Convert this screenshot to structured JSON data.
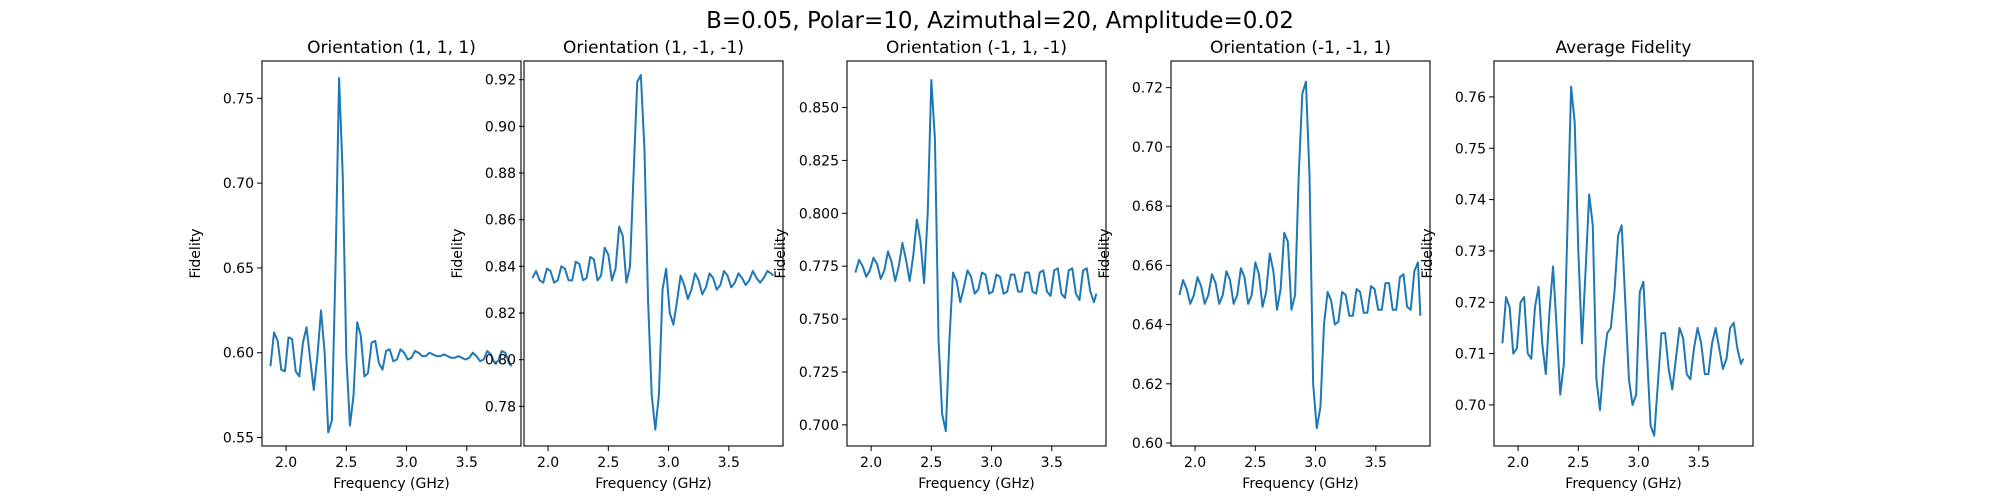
{
  "figure": {
    "suptitle": "B=0.05, Polar=10, Azimuthal=20, Amplitude=0.02"
  },
  "style": {
    "line_color": "#1f77b4",
    "axis_color": "#000000"
  },
  "chart_data": [
    {
      "type": "line",
      "title": "Orientation (1, 1, 1)",
      "xlabel": "Frequency (GHz)",
      "ylabel": "Fidelity",
      "xlim": [
        1.8,
        3.95
      ],
      "ylim": [
        0.545,
        0.772
      ],
      "xticks": [
        2.0,
        2.5,
        3.0,
        3.5
      ],
      "xtick_labels": [
        "2.0",
        "2.5",
        "3.0",
        "3.5"
      ],
      "yticks": [
        0.55,
        0.6,
        0.65,
        0.7,
        0.75
      ],
      "ytick_labels": [
        "0.55",
        "0.60",
        "0.65",
        "0.70",
        "0.75"
      ],
      "series": [
        {
          "x": [
            1.87,
            1.9,
            1.93,
            1.96,
            1.99,
            2.02,
            2.05,
            2.08,
            2.11,
            2.14,
            2.17,
            2.2,
            2.23,
            2.26,
            2.29,
            2.32,
            2.35,
            2.38,
            2.41,
            2.44,
            2.47,
            2.5,
            2.53,
            2.56,
            2.59,
            2.62,
            2.65,
            2.68,
            2.71,
            2.74,
            2.77,
            2.8,
            2.83,
            2.86,
            2.89,
            2.92,
            2.95,
            2.98,
            3.01,
            3.04,
            3.07,
            3.1,
            3.13,
            3.16,
            3.19,
            3.22,
            3.25,
            3.28,
            3.31,
            3.34,
            3.37,
            3.4,
            3.43,
            3.46,
            3.49,
            3.52,
            3.55,
            3.58,
            3.61,
            3.64,
            3.67,
            3.7,
            3.73,
            3.76,
            3.79,
            3.82,
            3.85,
            3.87
          ],
          "y": [
            0.592,
            0.612,
            0.607,
            0.59,
            0.589,
            0.609,
            0.608,
            0.589,
            0.586,
            0.606,
            0.615,
            0.596,
            0.578,
            0.598,
            0.625,
            0.6,
            0.553,
            0.56,
            0.65,
            0.762,
            0.705,
            0.598,
            0.557,
            0.575,
            0.618,
            0.61,
            0.586,
            0.588,
            0.606,
            0.607,
            0.594,
            0.59,
            0.601,
            0.602,
            0.595,
            0.596,
            0.602,
            0.6,
            0.596,
            0.597,
            0.601,
            0.6,
            0.598,
            0.598,
            0.6,
            0.599,
            0.598,
            0.598,
            0.599,
            0.598,
            0.597,
            0.597,
            0.598,
            0.597,
            0.596,
            0.597,
            0.6,
            0.598,
            0.595,
            0.596,
            0.601,
            0.599,
            0.594,
            0.595,
            0.601,
            0.6,
            0.594,
            0.592
          ]
        }
      ]
    },
    {
      "type": "line",
      "title": "Orientation (1, -1, -1)",
      "xlabel": "Frequency (GHz)",
      "ylabel": "Fidelity",
      "xlim": [
        1.8,
        3.95
      ],
      "ylim": [
        0.763,
        0.928
      ],
      "xticks": [
        2.0,
        2.5,
        3.0,
        3.5
      ],
      "xtick_labels": [
        "2.0",
        "2.5",
        "3.0",
        "3.5"
      ],
      "yticks": [
        0.78,
        0.8,
        0.82,
        0.84,
        0.86,
        0.88,
        0.9,
        0.92
      ],
      "ytick_labels": [
        "0.78",
        "0.80",
        "0.82",
        "0.84",
        "0.86",
        "0.88",
        "0.90",
        "0.92"
      ],
      "series": [
        {
          "x": [
            1.87,
            1.9,
            1.93,
            1.96,
            1.99,
            2.02,
            2.05,
            2.08,
            2.11,
            2.14,
            2.17,
            2.2,
            2.23,
            2.26,
            2.29,
            2.32,
            2.35,
            2.38,
            2.41,
            2.44,
            2.47,
            2.5,
            2.53,
            2.56,
            2.59,
            2.62,
            2.65,
            2.68,
            2.71,
            2.74,
            2.77,
            2.8,
            2.83,
            2.86,
            2.89,
            2.92,
            2.95,
            2.98,
            3.01,
            3.04,
            3.07,
            3.1,
            3.13,
            3.16,
            3.19,
            3.22,
            3.25,
            3.28,
            3.31,
            3.34,
            3.37,
            3.4,
            3.43,
            3.46,
            3.49,
            3.52,
            3.55,
            3.58,
            3.61,
            3.64,
            3.67,
            3.7,
            3.73,
            3.76,
            3.79,
            3.82,
            3.85,
            3.87
          ],
          "y": [
            0.835,
            0.838,
            0.834,
            0.833,
            0.839,
            0.838,
            0.833,
            0.834,
            0.84,
            0.839,
            0.834,
            0.834,
            0.842,
            0.841,
            0.834,
            0.835,
            0.844,
            0.843,
            0.834,
            0.836,
            0.848,
            0.845,
            0.834,
            0.839,
            0.857,
            0.853,
            0.833,
            0.84,
            0.88,
            0.919,
            0.922,
            0.89,
            0.825,
            0.785,
            0.77,
            0.785,
            0.83,
            0.839,
            0.82,
            0.815,
            0.825,
            0.836,
            0.832,
            0.826,
            0.83,
            0.837,
            0.834,
            0.828,
            0.831,
            0.837,
            0.835,
            0.83,
            0.832,
            0.838,
            0.836,
            0.831,
            0.833,
            0.837,
            0.835,
            0.832,
            0.834,
            0.838,
            0.835,
            0.833,
            0.835,
            0.838,
            0.837,
            0.836
          ]
        }
      ]
    },
    {
      "type": "line",
      "title": "Orientation (-1, 1, -1)",
      "xlabel": "Frequency (GHz)",
      "ylabel": "Fidelity",
      "xlim": [
        1.8,
        3.95
      ],
      "ylim": [
        0.69,
        0.872
      ],
      "xticks": [
        2.0,
        2.5,
        3.0,
        3.5
      ],
      "xtick_labels": [
        "2.0",
        "2.5",
        "3.0",
        "3.5"
      ],
      "yticks": [
        0.7,
        0.725,
        0.75,
        0.775,
        0.8,
        0.825,
        0.85
      ],
      "ytick_labels": [
        "0.700",
        "0.725",
        "0.750",
        "0.775",
        "0.800",
        "0.825",
        "0.850"
      ],
      "series": [
        {
          "x": [
            1.87,
            1.9,
            1.93,
            1.96,
            1.99,
            2.02,
            2.05,
            2.08,
            2.11,
            2.14,
            2.17,
            2.2,
            2.23,
            2.26,
            2.29,
            2.32,
            2.35,
            2.38,
            2.41,
            2.44,
            2.47,
            2.5,
            2.53,
            2.56,
            2.59,
            2.62,
            2.65,
            2.68,
            2.71,
            2.74,
            2.77,
            2.8,
            2.83,
            2.86,
            2.89,
            2.92,
            2.95,
            2.98,
            3.01,
            3.04,
            3.07,
            3.1,
            3.13,
            3.16,
            3.19,
            3.22,
            3.25,
            3.28,
            3.31,
            3.34,
            3.37,
            3.4,
            3.43,
            3.46,
            3.49,
            3.52,
            3.55,
            3.58,
            3.61,
            3.64,
            3.67,
            3.7,
            3.73,
            3.76,
            3.79,
            3.82,
            3.85,
            3.87
          ],
          "y": [
            0.772,
            0.778,
            0.775,
            0.77,
            0.773,
            0.779,
            0.776,
            0.769,
            0.773,
            0.782,
            0.777,
            0.768,
            0.775,
            0.786,
            0.778,
            0.768,
            0.78,
            0.797,
            0.787,
            0.767,
            0.8,
            0.863,
            0.835,
            0.74,
            0.705,
            0.697,
            0.74,
            0.772,
            0.768,
            0.758,
            0.765,
            0.773,
            0.77,
            0.762,
            0.764,
            0.772,
            0.771,
            0.762,
            0.763,
            0.771,
            0.77,
            0.762,
            0.763,
            0.771,
            0.771,
            0.763,
            0.763,
            0.772,
            0.772,
            0.763,
            0.762,
            0.772,
            0.773,
            0.763,
            0.761,
            0.773,
            0.774,
            0.762,
            0.76,
            0.773,
            0.774,
            0.762,
            0.759,
            0.773,
            0.774,
            0.763,
            0.758,
            0.762
          ]
        }
      ]
    },
    {
      "type": "line",
      "title": "Orientation (-1, -1, 1)",
      "xlabel": "Frequency (GHz)",
      "ylabel": "Fidelity",
      "xlim": [
        1.8,
        3.95
      ],
      "ylim": [
        0.599,
        0.729
      ],
      "xticks": [
        2.0,
        2.5,
        3.0,
        3.5
      ],
      "xtick_labels": [
        "2.0",
        "2.5",
        "3.0",
        "3.5"
      ],
      "yticks": [
        0.6,
        0.62,
        0.64,
        0.66,
        0.68,
        0.7,
        0.72
      ],
      "ytick_labels": [
        "0.60",
        "0.62",
        "0.64",
        "0.66",
        "0.68",
        "0.70",
        "0.72"
      ],
      "series": [
        {
          "x": [
            1.87,
            1.9,
            1.93,
            1.96,
            1.99,
            2.02,
            2.05,
            2.08,
            2.11,
            2.14,
            2.17,
            2.2,
            2.23,
            2.26,
            2.29,
            2.32,
            2.35,
            2.38,
            2.41,
            2.44,
            2.47,
            2.5,
            2.53,
            2.56,
            2.59,
            2.62,
            2.65,
            2.68,
            2.71,
            2.74,
            2.77,
            2.8,
            2.83,
            2.86,
            2.89,
            2.92,
            2.95,
            2.98,
            3.01,
            3.04,
            3.07,
            3.1,
            3.13,
            3.16,
            3.19,
            3.22,
            3.25,
            3.28,
            3.31,
            3.34,
            3.37,
            3.4,
            3.43,
            3.46,
            3.49,
            3.52,
            3.55,
            3.58,
            3.61,
            3.64,
            3.67,
            3.7,
            3.73,
            3.76,
            3.79,
            3.82,
            3.85,
            3.87
          ],
          "y": [
            0.65,
            0.655,
            0.652,
            0.647,
            0.65,
            0.656,
            0.653,
            0.647,
            0.65,
            0.657,
            0.654,
            0.647,
            0.65,
            0.658,
            0.655,
            0.647,
            0.65,
            0.659,
            0.656,
            0.647,
            0.65,
            0.661,
            0.657,
            0.646,
            0.651,
            0.664,
            0.658,
            0.645,
            0.652,
            0.671,
            0.668,
            0.645,
            0.65,
            0.69,
            0.718,
            0.722,
            0.69,
            0.62,
            0.605,
            0.612,
            0.64,
            0.651,
            0.648,
            0.64,
            0.641,
            0.651,
            0.65,
            0.643,
            0.643,
            0.652,
            0.651,
            0.644,
            0.644,
            0.653,
            0.652,
            0.645,
            0.645,
            0.654,
            0.654,
            0.645,
            0.645,
            0.656,
            0.657,
            0.646,
            0.645,
            0.658,
            0.661,
            0.643
          ]
        }
      ]
    },
    {
      "type": "line",
      "title": "Average Fidelity",
      "xlabel": "Frequency (GHz)",
      "ylabel": "Fidelity",
      "xlim": [
        1.8,
        3.95
      ],
      "ylim": [
        0.692,
        0.767
      ],
      "xticks": [
        2.0,
        2.5,
        3.0,
        3.5
      ],
      "xtick_labels": [
        "2.0",
        "2.5",
        "3.0",
        "3.5"
      ],
      "yticks": [
        0.7,
        0.71,
        0.72,
        0.73,
        0.74,
        0.75,
        0.76
      ],
      "ytick_labels": [
        "0.70",
        "0.71",
        "0.72",
        "0.73",
        "0.74",
        "0.75",
        "0.76"
      ],
      "series": [
        {
          "x": [
            1.87,
            1.9,
            1.93,
            1.96,
            1.99,
            2.02,
            2.05,
            2.08,
            2.11,
            2.14,
            2.17,
            2.2,
            2.23,
            2.26,
            2.29,
            2.32,
            2.35,
            2.38,
            2.41,
            2.44,
            2.47,
            2.5,
            2.53,
            2.56,
            2.59,
            2.62,
            2.65,
            2.68,
            2.71,
            2.74,
            2.77,
            2.8,
            2.83,
            2.86,
            2.89,
            2.92,
            2.95,
            2.98,
            3.01,
            3.04,
            3.07,
            3.1,
            3.13,
            3.16,
            3.19,
            3.22,
            3.25,
            3.28,
            3.31,
            3.34,
            3.37,
            3.4,
            3.43,
            3.46,
            3.49,
            3.52,
            3.55,
            3.58,
            3.61,
            3.64,
            3.67,
            3.7,
            3.73,
            3.76,
            3.79,
            3.82,
            3.85,
            3.87
          ],
          "y": [
            0.712,
            0.721,
            0.719,
            0.71,
            0.711,
            0.72,
            0.721,
            0.71,
            0.709,
            0.719,
            0.723,
            0.712,
            0.706,
            0.718,
            0.727,
            0.715,
            0.702,
            0.708,
            0.735,
            0.762,
            0.755,
            0.73,
            0.712,
            0.726,
            0.741,
            0.735,
            0.705,
            0.699,
            0.708,
            0.714,
            0.715,
            0.722,
            0.733,
            0.735,
            0.72,
            0.705,
            0.7,
            0.702,
            0.722,
            0.724,
            0.71,
            0.696,
            0.694,
            0.704,
            0.714,
            0.714,
            0.707,
            0.703,
            0.709,
            0.715,
            0.713,
            0.706,
            0.705,
            0.711,
            0.715,
            0.712,
            0.706,
            0.706,
            0.712,
            0.715,
            0.711,
            0.707,
            0.709,
            0.715,
            0.716,
            0.711,
            0.708,
            0.709
          ]
        }
      ]
    }
  ]
}
